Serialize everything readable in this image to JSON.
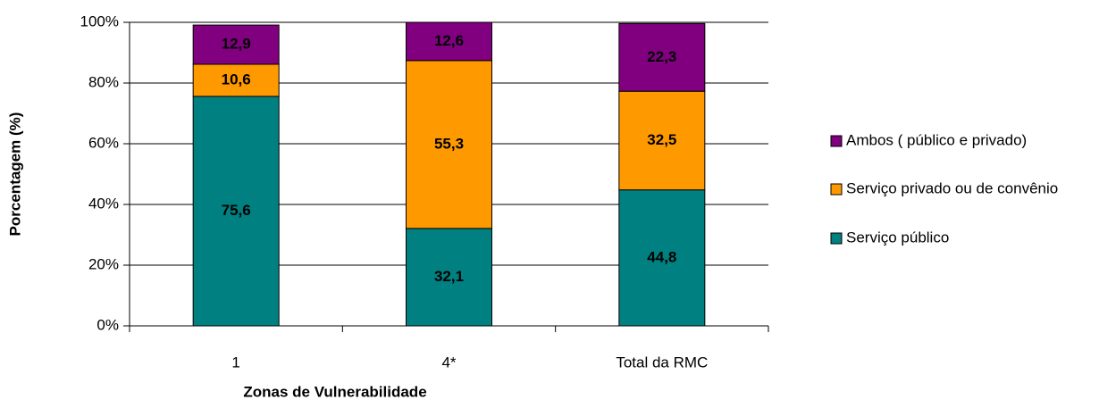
{
  "chart_data": {
    "type": "stacked_bar",
    "xlabel": "Zonas de Vulnerabilidade",
    "ylabel": "Porcentagem (%)",
    "categories": [
      "1",
      "4*",
      "Total da RMC"
    ],
    "series": [
      {
        "name": "Serviço público",
        "color": "#008080",
        "values": [
          75.6,
          32.1,
          44.8
        ],
        "value_labels": [
          "75,6",
          "32,1",
          "44,8"
        ]
      },
      {
        "name": "Serviço privado ou de convênio",
        "color": "#FF9900",
        "values": [
          10.6,
          55.3,
          32.5
        ],
        "value_labels": [
          "10,6",
          "55,3",
          "32,5"
        ]
      },
      {
        "name": "Ambos ( público e privado)",
        "color": "#800080",
        "values": [
          12.9,
          12.6,
          22.3
        ],
        "value_labels": [
          "12,9",
          "12,6",
          "22,3"
        ]
      }
    ],
    "ylim": [
      0,
      100
    ],
    "yticks": [
      {
        "value": 0,
        "label": "0%"
      },
      {
        "value": 20,
        "label": "20%"
      },
      {
        "value": 40,
        "label": "40%"
      },
      {
        "value": 60,
        "label": "60%"
      },
      {
        "value": 80,
        "label": "80%"
      },
      {
        "value": 100,
        "label": "100%"
      }
    ],
    "grid": true,
    "legend": "right"
  }
}
